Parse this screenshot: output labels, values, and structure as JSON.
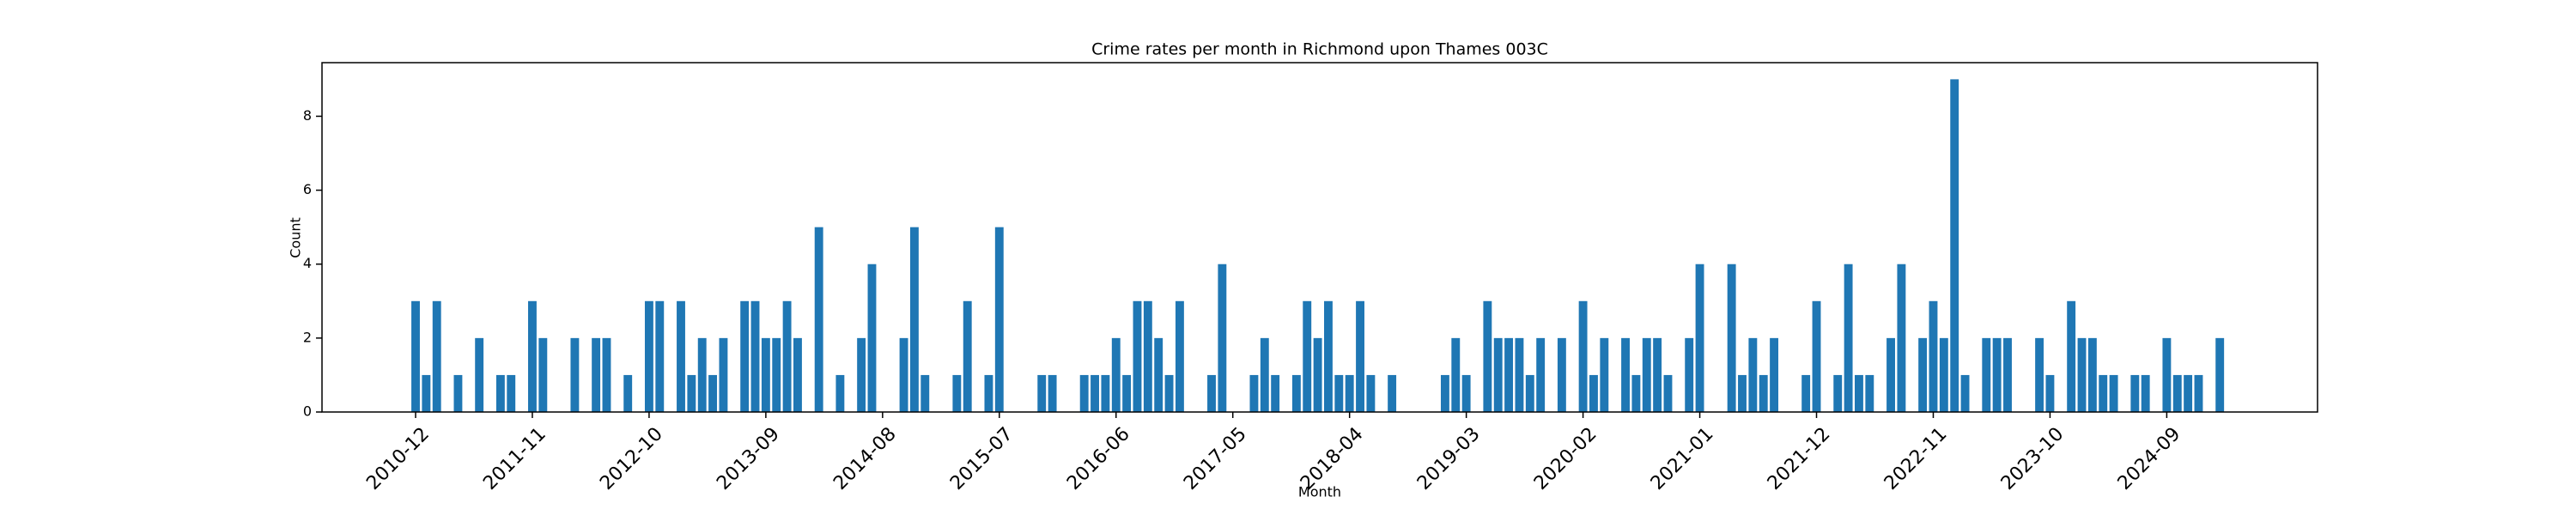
{
  "chart_data": {
    "type": "bar",
    "title": "Crime rates per month in Richmond upon Thames 003C",
    "xlabel": "Month",
    "ylabel": "Count",
    "color": "#1f77b4",
    "categories": [
      "2010-12",
      null,
      null,
      null,
      null,
      null,
      null,
      null,
      null,
      null,
      null,
      "2011-11",
      null,
      null,
      null,
      null,
      null,
      null,
      null,
      null,
      null,
      null,
      "2012-10",
      null,
      null,
      null,
      null,
      null,
      null,
      null,
      null,
      null,
      null,
      "2013-09",
      null,
      null,
      null,
      null,
      null,
      null,
      null,
      null,
      null,
      null,
      "2014-08",
      null,
      null,
      null,
      null,
      null,
      null,
      null,
      null,
      null,
      null,
      "2015-07",
      null,
      null,
      null,
      null,
      null,
      null,
      null,
      null,
      null,
      null,
      "2016-06",
      null,
      null,
      null,
      null,
      null,
      null,
      null,
      null,
      null,
      null,
      "2017-05",
      null,
      null,
      null,
      null,
      null,
      null,
      null,
      null,
      null,
      null,
      "2018-04",
      null,
      null,
      null,
      null,
      null,
      null,
      null,
      null,
      null,
      null,
      "2019-03",
      null,
      null,
      null,
      null,
      null,
      null,
      null,
      null,
      null,
      null,
      "2020-02",
      null,
      null,
      null,
      null,
      null,
      null,
      null,
      null,
      null,
      null,
      "2021-01",
      null,
      null,
      null,
      null,
      null,
      null,
      null,
      null,
      null,
      null,
      "2021-12",
      null,
      null,
      null,
      null,
      null,
      null,
      null,
      null,
      null,
      null,
      "2022-11",
      null,
      null,
      null,
      null,
      null,
      null,
      null,
      null,
      null,
      null,
      "2023-10",
      null,
      null,
      null,
      null,
      null,
      null,
      null,
      null,
      null,
      null,
      "2024-09",
      null,
      null,
      null,
      null,
      null
    ],
    "values": [
      3,
      1,
      3,
      0,
      1,
      0,
      2,
      0,
      1,
      1,
      0,
      3,
      2,
      0,
      0,
      2,
      0,
      2,
      2,
      0,
      1,
      0,
      3,
      3,
      0,
      3,
      1,
      2,
      1,
      2,
      0,
      3,
      3,
      2,
      2,
      3,
      2,
      0,
      5,
      0,
      1,
      0,
      2,
      4,
      0,
      0,
      2,
      5,
      1,
      0,
      0,
      1,
      3,
      0,
      1,
      5,
      0,
      0,
      0,
      1,
      1,
      0,
      0,
      1,
      1,
      1,
      2,
      1,
      3,
      3,
      2,
      1,
      3,
      0,
      0,
      1,
      4,
      0,
      0,
      1,
      2,
      1,
      0,
      1,
      3,
      2,
      3,
      1,
      1,
      3,
      1,
      0,
      1,
      0,
      0,
      0,
      0,
      1,
      2,
      1,
      0,
      3,
      2,
      2,
      2,
      1,
      2,
      0,
      2,
      0,
      3,
      1,
      2,
      0,
      2,
      1,
      2,
      2,
      1,
      0,
      2,
      4,
      0,
      0,
      4,
      1,
      2,
      1,
      2,
      0,
      0,
      1,
      3,
      0,
      1,
      4,
      1,
      1,
      0,
      2,
      4,
      0,
      2,
      3,
      2,
      9,
      1,
      0,
      2,
      2,
      2,
      0,
      0,
      2,
      1,
      0,
      3,
      2,
      2,
      1,
      1,
      0,
      1,
      1,
      0,
      2,
      1,
      1,
      1,
      0,
      2
    ],
    "ylim": [
      0,
      9.45
    ],
    "yticks": [
      0,
      2,
      4,
      6,
      8
    ]
  }
}
